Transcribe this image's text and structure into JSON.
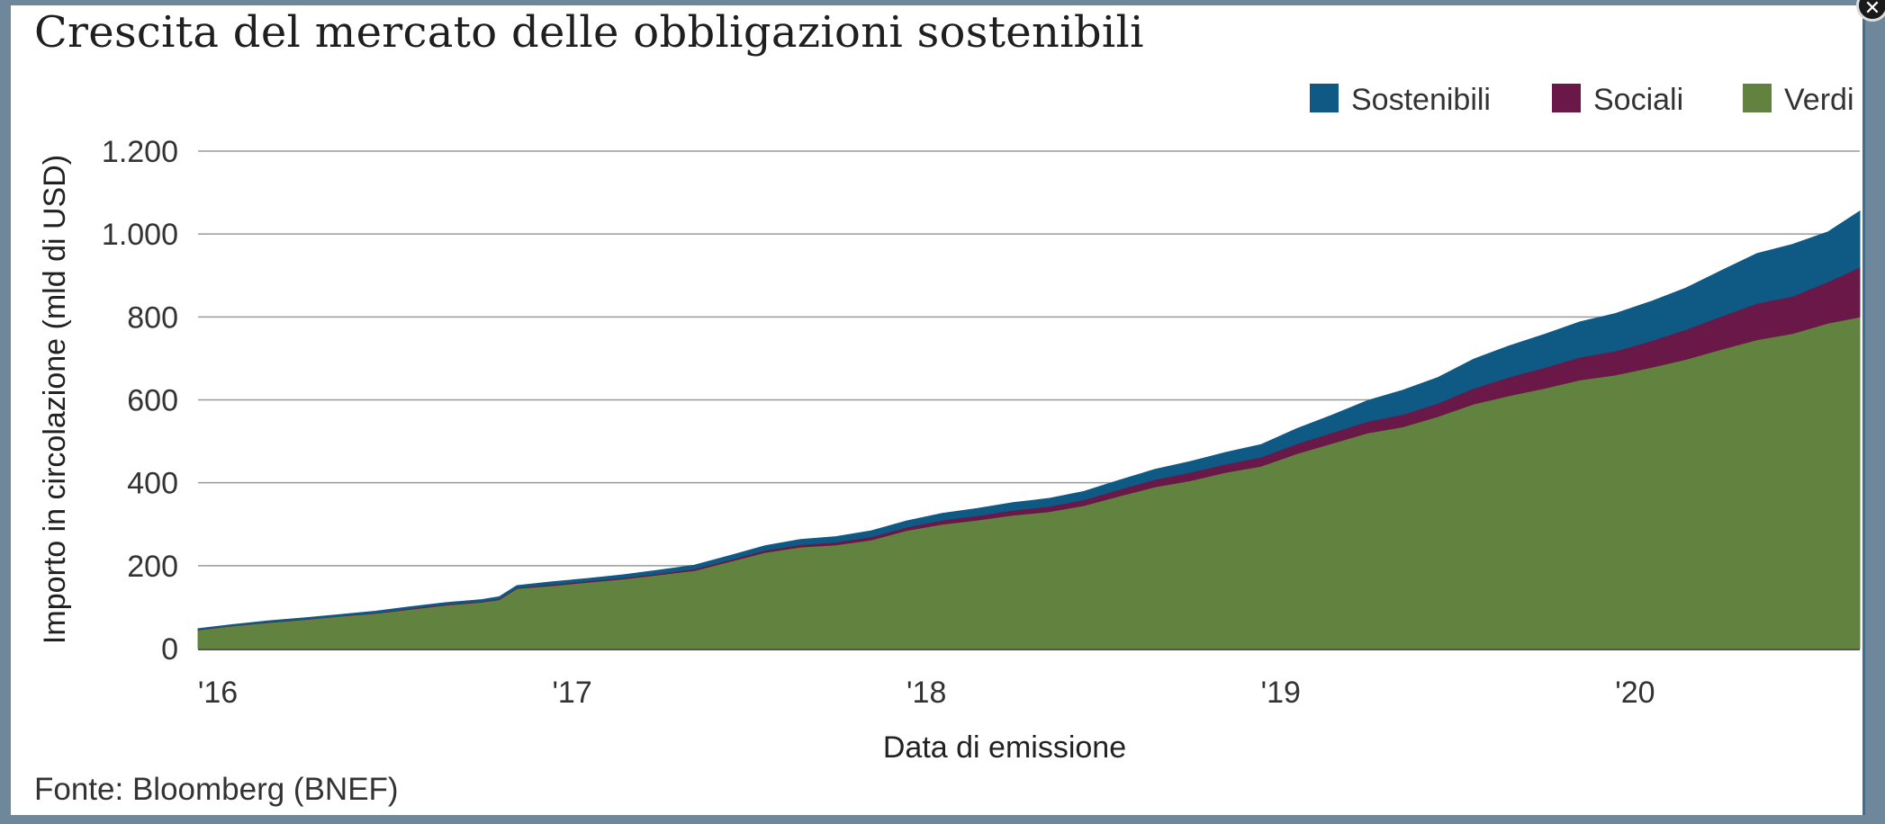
{
  "chart_data": {
    "type": "area",
    "title": "Crescita del mercato delle obbligazioni sostenibili",
    "source": "Fonte: Bloomberg (BNEF)",
    "xlabel": "Data di emissione",
    "ylabel": "Importo in circolazione (mld di USD)",
    "ylim": [
      0,
      1200
    ],
    "yticks": [
      0,
      200,
      400,
      600,
      800,
      1000,
      1200
    ],
    "ytick_labels": [
      "0",
      "200",
      "400",
      "600",
      "800",
      "1.000",
      "1.200"
    ],
    "xlim": [
      2016.0,
      2020.69
    ],
    "xticks": [
      2016,
      2017,
      2018,
      2019,
      2020
    ],
    "xtick_labels": [
      "'16",
      "'17",
      "'18",
      "'19",
      "'20"
    ],
    "stacked": true,
    "grid": true,
    "legend_position": "top-right",
    "colors": {
      "Sostenibili": "#0f5a84",
      "Sociali": "#6a1848",
      "Verdi": "#62833f"
    },
    "x": [
      2016.0,
      2016.1,
      2016.2,
      2016.3,
      2016.4,
      2016.5,
      2016.6,
      2016.7,
      2016.8,
      2016.85,
      2016.9,
      2017.0,
      2017.1,
      2017.2,
      2017.3,
      2017.4,
      2017.5,
      2017.6,
      2017.7,
      2017.8,
      2017.9,
      2018.0,
      2018.1,
      2018.2,
      2018.3,
      2018.4,
      2018.5,
      2018.6,
      2018.7,
      2018.8,
      2018.9,
      2019.0,
      2019.1,
      2019.2,
      2019.3,
      2019.4,
      2019.5,
      2019.6,
      2019.7,
      2019.8,
      2019.9,
      2020.0,
      2020.1,
      2020.2,
      2020.3,
      2020.4,
      2020.5,
      2020.6,
      2020.69
    ],
    "series": [
      {
        "name": "Verdi",
        "values": [
          45,
          55,
          63,
          70,
          78,
          85,
          95,
          105,
          112,
          118,
          145,
          152,
          160,
          168,
          178,
          188,
          210,
          232,
          245,
          250,
          262,
          285,
          300,
          310,
          322,
          330,
          345,
          368,
          390,
          405,
          425,
          440,
          470,
          495,
          520,
          535,
          560,
          590,
          610,
          628,
          648,
          660,
          678,
          698,
          722,
          745,
          760,
          785,
          800
        ]
      },
      {
        "name": "Sociali",
        "values": [
          1,
          1,
          1,
          1,
          1,
          1,
          2,
          2,
          2,
          2,
          2,
          3,
          3,
          3,
          3,
          4,
          4,
          5,
          6,
          7,
          8,
          8,
          10,
          11,
          12,
          13,
          14,
          16,
          18,
          20,
          20,
          22,
          24,
          26,
          28,
          30,
          32,
          38,
          45,
          50,
          55,
          58,
          64,
          72,
          80,
          88,
          90,
          100,
          120
        ]
      },
      {
        "name": "Sostenibili",
        "values": [
          2,
          2,
          3,
          3,
          3,
          4,
          4,
          4,
          4,
          5,
          5,
          6,
          6,
          7,
          8,
          9,
          10,
          11,
          12,
          13,
          14,
          15,
          16,
          17,
          18,
          19,
          20,
          22,
          24,
          26,
          28,
          30,
          36,
          42,
          50,
          58,
          62,
          70,
          75,
          80,
          85,
          90,
          95,
          100,
          110,
          120,
          125,
          120,
          135
        ]
      }
    ]
  }
}
